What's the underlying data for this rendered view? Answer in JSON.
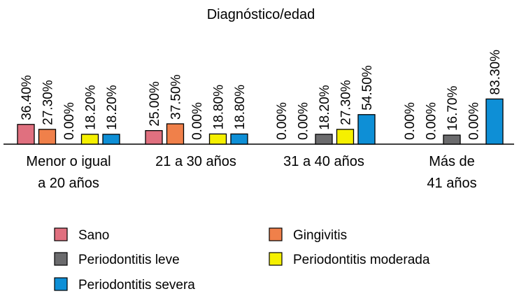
{
  "chart_data": {
    "type": "bar",
    "title": "Diagnóstico/edad",
    "xlabel": "",
    "ylabel": "",
    "ylim": [
      0,
      100
    ],
    "grid": false,
    "legend_position": "bottom",
    "categories": [
      [
        "Menor o igual",
        "a 20 años"
      ],
      [
        "21 a 30 años"
      ],
      [
        "31 a 40 años"
      ],
      [
        "Más de",
        "41 años"
      ]
    ],
    "series": [
      {
        "name": "Sano",
        "color": "#e0707f",
        "values": [
          36.4,
          25.0,
          0.0,
          0.0
        ],
        "labels": [
          "36.40%",
          "25.00%",
          "0.00%",
          "0.00%"
        ]
      },
      {
        "name": "Gingivitis",
        "color": "#f0804a",
        "values": [
          27.3,
          37.5,
          0.0,
          0.0
        ],
        "labels": [
          "27.30%",
          "37.50%",
          "0.00%",
          "0.00%"
        ]
      },
      {
        "name": "Periodontitis leve",
        "color": "#6b6b6d",
        "values": [
          0.0,
          0.0,
          18.2,
          16.7
        ],
        "labels": [
          "0.00%",
          "0.00%",
          "18.20%",
          "16.70%"
        ]
      },
      {
        "name": "Periodontitis moderada",
        "color": "#f5f000",
        "values": [
          18.2,
          18.8,
          27.3,
          0.0
        ],
        "labels": [
          "18.20%",
          "18.80%",
          "27.30%",
          "0.00%"
        ]
      },
      {
        "name": "Periodontitis severa",
        "color": "#0e8fd6",
        "values": [
          18.2,
          18.8,
          54.5,
          83.3
        ],
        "labels": [
          "18.20%",
          "18.80%",
          "54.50%",
          "83.30%"
        ]
      }
    ]
  }
}
